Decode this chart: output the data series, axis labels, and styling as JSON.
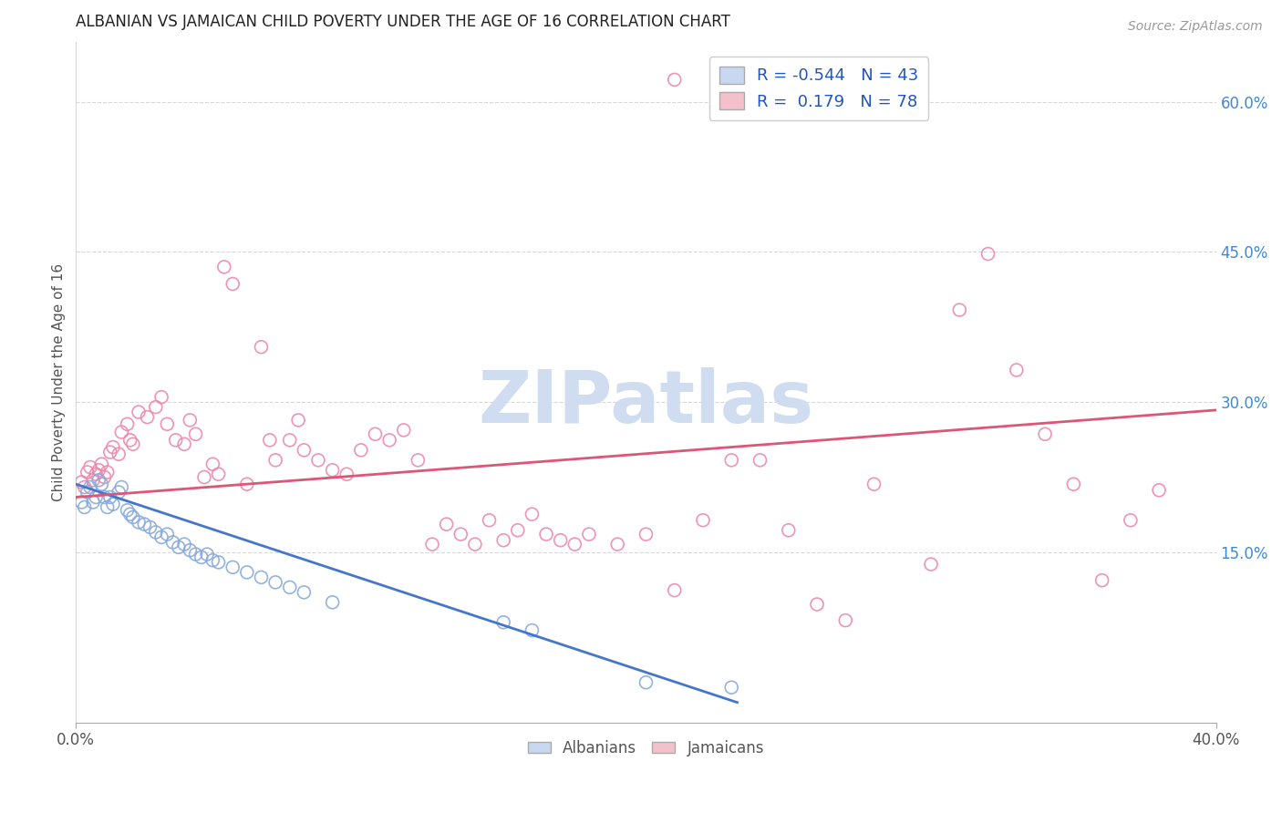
{
  "title": "ALBANIAN VS JAMAICAN CHILD POVERTY UNDER THE AGE OF 16 CORRELATION CHART",
  "source": "Source: ZipAtlas.com",
  "ylabel": "Child Poverty Under the Age of 16",
  "xlim": [
    0.0,
    0.4
  ],
  "ylim": [
    -0.02,
    0.66
  ],
  "x_tick_positions": [
    0.0,
    0.4
  ],
  "x_tick_labels": [
    "0.0%",
    "40.0%"
  ],
  "y_ticks_right": [
    0.15,
    0.3,
    0.45,
    0.6
  ],
  "y_tick_labels_right": [
    "15.0%",
    "30.0%",
    "45.0%",
    "60.0%"
  ],
  "albanian_color": "#88aadd",
  "jamaican_color": "#ee88aa",
  "albanian_R": -0.544,
  "albanian_N": 43,
  "jamaican_R": 0.179,
  "jamaican_N": 78,
  "legend_entries": [
    "Albanians",
    "Jamaicans"
  ],
  "watermark": "ZIPatlas",
  "watermark_color": "#d0ddf0",
  "albanian_points": [
    [
      0.002,
      0.2
    ],
    [
      0.003,
      0.195
    ],
    [
      0.004,
      0.21
    ],
    [
      0.005,
      0.215
    ],
    [
      0.006,
      0.2
    ],
    [
      0.007,
      0.205
    ],
    [
      0.008,
      0.222
    ],
    [
      0.009,
      0.218
    ],
    [
      0.01,
      0.205
    ],
    [
      0.011,
      0.195
    ],
    [
      0.012,
      0.205
    ],
    [
      0.013,
      0.198
    ],
    [
      0.015,
      0.21
    ],
    [
      0.016,
      0.215
    ],
    [
      0.018,
      0.192
    ],
    [
      0.019,
      0.188
    ],
    [
      0.02,
      0.185
    ],
    [
      0.022,
      0.18
    ],
    [
      0.024,
      0.178
    ],
    [
      0.026,
      0.175
    ],
    [
      0.028,
      0.17
    ],
    [
      0.03,
      0.165
    ],
    [
      0.032,
      0.168
    ],
    [
      0.034,
      0.16
    ],
    [
      0.036,
      0.155
    ],
    [
      0.038,
      0.158
    ],
    [
      0.04,
      0.152
    ],
    [
      0.042,
      0.148
    ],
    [
      0.044,
      0.145
    ],
    [
      0.046,
      0.148
    ],
    [
      0.048,
      0.142
    ],
    [
      0.05,
      0.14
    ],
    [
      0.055,
      0.135
    ],
    [
      0.06,
      0.13
    ],
    [
      0.065,
      0.125
    ],
    [
      0.07,
      0.12
    ],
    [
      0.075,
      0.115
    ],
    [
      0.08,
      0.11
    ],
    [
      0.09,
      0.1
    ],
    [
      0.15,
      0.08
    ],
    [
      0.16,
      0.072
    ],
    [
      0.2,
      0.02
    ],
    [
      0.23,
      0.015
    ]
  ],
  "jamaican_points": [
    [
      0.002,
      0.22
    ],
    [
      0.003,
      0.215
    ],
    [
      0.004,
      0.23
    ],
    [
      0.005,
      0.235
    ],
    [
      0.006,
      0.222
    ],
    [
      0.007,
      0.228
    ],
    [
      0.008,
      0.232
    ],
    [
      0.009,
      0.238
    ],
    [
      0.01,
      0.225
    ],
    [
      0.011,
      0.23
    ],
    [
      0.012,
      0.25
    ],
    [
      0.013,
      0.255
    ],
    [
      0.015,
      0.248
    ],
    [
      0.016,
      0.27
    ],
    [
      0.018,
      0.278
    ],
    [
      0.019,
      0.262
    ],
    [
      0.02,
      0.258
    ],
    [
      0.022,
      0.29
    ],
    [
      0.025,
      0.285
    ],
    [
      0.028,
      0.295
    ],
    [
      0.03,
      0.305
    ],
    [
      0.032,
      0.278
    ],
    [
      0.035,
      0.262
    ],
    [
      0.038,
      0.258
    ],
    [
      0.04,
      0.282
    ],
    [
      0.042,
      0.268
    ],
    [
      0.045,
      0.225
    ],
    [
      0.048,
      0.238
    ],
    [
      0.05,
      0.228
    ],
    [
      0.052,
      0.435
    ],
    [
      0.055,
      0.418
    ],
    [
      0.06,
      0.218
    ],
    [
      0.065,
      0.355
    ],
    [
      0.068,
      0.262
    ],
    [
      0.07,
      0.242
    ],
    [
      0.075,
      0.262
    ],
    [
      0.078,
      0.282
    ],
    [
      0.08,
      0.252
    ],
    [
      0.085,
      0.242
    ],
    [
      0.09,
      0.232
    ],
    [
      0.095,
      0.228
    ],
    [
      0.1,
      0.252
    ],
    [
      0.105,
      0.268
    ],
    [
      0.11,
      0.262
    ],
    [
      0.115,
      0.272
    ],
    [
      0.12,
      0.242
    ],
    [
      0.125,
      0.158
    ],
    [
      0.13,
      0.178
    ],
    [
      0.135,
      0.168
    ],
    [
      0.14,
      0.158
    ],
    [
      0.145,
      0.182
    ],
    [
      0.15,
      0.162
    ],
    [
      0.155,
      0.172
    ],
    [
      0.16,
      0.188
    ],
    [
      0.165,
      0.168
    ],
    [
      0.17,
      0.162
    ],
    [
      0.175,
      0.158
    ],
    [
      0.18,
      0.168
    ],
    [
      0.19,
      0.158
    ],
    [
      0.2,
      0.168
    ],
    [
      0.21,
      0.112
    ],
    [
      0.22,
      0.182
    ],
    [
      0.23,
      0.242
    ],
    [
      0.24,
      0.242
    ],
    [
      0.25,
      0.172
    ],
    [
      0.26,
      0.098
    ],
    [
      0.27,
      0.082
    ],
    [
      0.28,
      0.218
    ],
    [
      0.3,
      0.138
    ],
    [
      0.31,
      0.392
    ],
    [
      0.32,
      0.448
    ],
    [
      0.33,
      0.332
    ],
    [
      0.34,
      0.268
    ],
    [
      0.35,
      0.218
    ],
    [
      0.36,
      0.122
    ],
    [
      0.37,
      0.182
    ],
    [
      0.38,
      0.212
    ],
    [
      0.21,
      0.622
    ]
  ],
  "albanian_line": {
    "x0": 0.0,
    "y0": 0.218,
    "x1": 0.232,
    "y1": 0.0
  },
  "jamaican_line": {
    "x0": 0.0,
    "y0": 0.205,
    "x1": 0.4,
    "y1": 0.292
  },
  "albanian_line_color": "#4477cc",
  "jamaican_line_color": "#dd5577",
  "background_color": "#ffffff",
  "grid_color": "#d8d8d8",
  "title_color": "#222222",
  "right_label_color": "#4488cc",
  "bottom_tick_color": "#555555",
  "marker_size": 100,
  "marker_lw": 1.2
}
